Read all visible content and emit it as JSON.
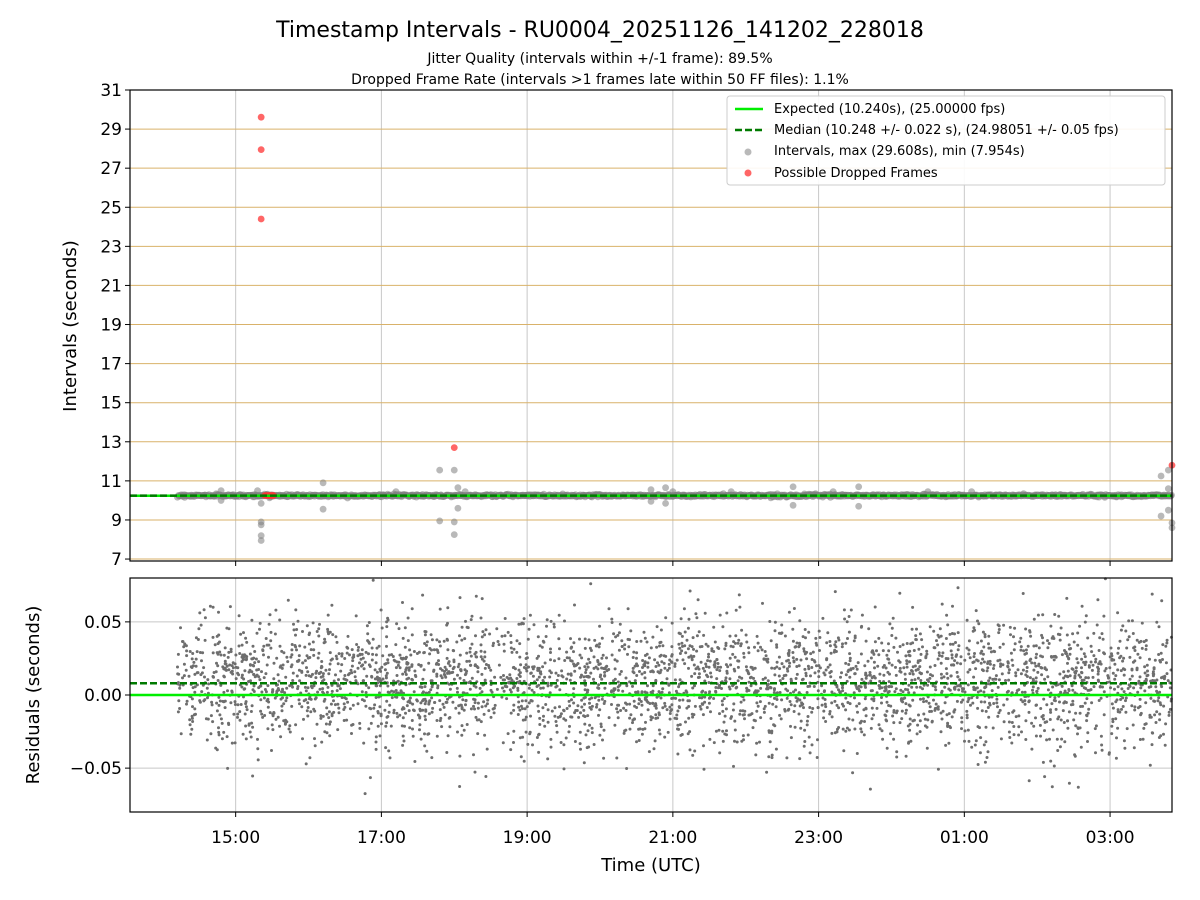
{
  "title": "Timestamp Intervals - RU0004_20251126_141202_228018",
  "subtitle_1": "Jitter Quality (intervals within +/-1 frame): 89.5%",
  "subtitle_2": "Dropped Frame Rate (intervals >1 frames late within 50 FF files): 1.1%",
  "xlabel": "Time (UTC)",
  "colors": {
    "expected": "#00ee00",
    "median": "#007a00",
    "intervals": "#808080",
    "dropped": "#ff3333",
    "hgrid_top": "#d9b26a",
    "grid": "#c8c8c8",
    "residual_points": "#6e6e6e"
  },
  "legend": {
    "expected": "Expected (10.240s), (25.00000 fps)",
    "median": "Median (10.248 +/- 0.022 s), (24.98051 +/- 0.05 fps)",
    "intervals": "Intervals, max (29.608s), min (7.954s)",
    "dropped": "Possible Dropped Frames"
  },
  "chart_data": [
    {
      "type": "scatter",
      "panel": "top",
      "ylabel": "Intervals (seconds)",
      "ylim": [
        6.9,
        31
      ],
      "yticks": [
        "7",
        "9",
        "11",
        "13",
        "15",
        "17",
        "19",
        "21",
        "23",
        "25",
        "27",
        "29",
        "31"
      ],
      "x_axis": "time",
      "xlim_hours": [
        13.55,
        27.85
      ],
      "xtick_hours": [
        15,
        17,
        19,
        21,
        23,
        25,
        27
      ],
      "xtick_labels": [
        "15:00",
        "17:00",
        "19:00",
        "21:00",
        "23:00",
        "01:00",
        "03:00"
      ],
      "expected_value": 10.24,
      "median_value": 10.248,
      "dense_band": {
        "from_hour": 14.2,
        "to_hour": 27.85,
        "center": 10.248,
        "spread": 0.03
      },
      "interval_outliers": [
        [
          14.8,
          10.5
        ],
        [
          14.8,
          10.0
        ],
        [
          15.35,
          9.85
        ],
        [
          15.35,
          8.9
        ],
        [
          15.35,
          8.75
        ],
        [
          15.35,
          8.2
        ],
        [
          15.35,
          7.95
        ],
        [
          15.3,
          10.5
        ],
        [
          16.2,
          10.9
        ],
        [
          16.2,
          9.55
        ],
        [
          17.2,
          10.45
        ],
        [
          17.8,
          11.55
        ],
        [
          17.8,
          8.95
        ],
        [
          18.0,
          11.55
        ],
        [
          18.05,
          10.65
        ],
        [
          18.05,
          9.6
        ],
        [
          18.0,
          8.9
        ],
        [
          18.0,
          8.25
        ],
        [
          18.15,
          10.45
        ],
        [
          20.7,
          10.55
        ],
        [
          20.9,
          10.65
        ],
        [
          20.9,
          9.85
        ],
        [
          21.0,
          10.45
        ],
        [
          20.7,
          9.95
        ],
        [
          21.8,
          10.45
        ],
        [
          22.65,
          10.7
        ],
        [
          22.65,
          9.75
        ],
        [
          23.2,
          10.45
        ],
        [
          23.55,
          10.7
        ],
        [
          23.55,
          9.7
        ],
        [
          24.5,
          10.45
        ],
        [
          25.1,
          10.45
        ],
        [
          27.7,
          11.25
        ],
        [
          27.8,
          11.55
        ],
        [
          27.8,
          10.6
        ],
        [
          27.8,
          9.5
        ],
        [
          27.7,
          9.2
        ],
        [
          27.85,
          8.85
        ],
        [
          27.85,
          8.6
        ]
      ],
      "dropped_frames": [
        [
          15.35,
          29.608
        ],
        [
          15.35,
          27.95
        ],
        [
          15.35,
          24.4
        ],
        [
          18.0,
          12.7
        ],
        [
          27.85,
          11.8
        ],
        [
          15.4,
          10.25
        ],
        [
          15.42,
          10.25
        ],
        [
          15.44,
          10.25
        ],
        [
          15.46,
          10.25
        ],
        [
          15.48,
          10.25
        ],
        [
          15.5,
          10.25
        ],
        [
          15.52,
          10.25
        ]
      ]
    },
    {
      "type": "scatter",
      "panel": "bottom",
      "ylabel": "Residuals (seconds)",
      "ylim": [
        -0.08,
        0.08
      ],
      "yticks": [
        0.05,
        0.0,
        -0.05
      ],
      "ytick_labels": [
        "0.05",
        "0.00",
        "−0.05"
      ],
      "expected_residual": 0.0,
      "median_residual": 0.008,
      "residual_cloud": {
        "from_hour": 14.2,
        "to_hour": 27.85,
        "center": 0.008,
        "std": 0.022,
        "points": 3600
      }
    }
  ]
}
